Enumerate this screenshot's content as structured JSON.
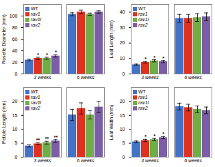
{
  "chart_data": [
    {
      "type": "bar",
      "ylabel": "Rosette Diameter (mm)",
      "categories": [
        "3 weeks",
        "6 weeks"
      ],
      "series": [
        {
          "name": "WT",
          "color": "#4472C4",
          "values": [
            24,
            103
          ],
          "errors": [
            1.5,
            2.5
          ]
        },
        {
          "name": "rav1",
          "color": "#E03020",
          "values": [
            27,
            107
          ],
          "errors": [
            1.8,
            3
          ],
          "annotations": [
            "*",
            null
          ]
        },
        {
          "name": "rav1l",
          "color": "#70AD47",
          "values": [
            27,
            103
          ],
          "errors": [
            1.8,
            2
          ],
          "annotations": [
            "*",
            null
          ]
        },
        {
          "name": "rav2",
          "color": "#7B5EA7",
          "values": [
            31,
            107
          ],
          "errors": [
            2,
            2
          ],
          "annotations": [
            "*",
            null
          ]
        }
      ],
      "ylim": [
        0,
        120
      ],
      "yticks": [
        0,
        20,
        40,
        60,
        80,
        100
      ],
      "legend": "upper left",
      "grid": false
    },
    {
      "type": "bar",
      "ylabel": "Leaf Length (mm)",
      "categories": [
        "3 weeks",
        "6 weeks"
      ],
      "series": [
        {
          "name": "WT",
          "color": "#4472C4",
          "values": [
            6,
            36
          ],
          "errors": [
            0.4,
            2.5
          ]
        },
        {
          "name": "rav1",
          "color": "#E03020",
          "values": [
            7.5,
            36
          ],
          "errors": [
            0.5,
            2.5
          ],
          "annotations": [
            "*",
            null
          ]
        },
        {
          "name": "rav1l",
          "color": "#70AD47",
          "values": [
            8.5,
            36.5
          ],
          "errors": [
            0.7,
            2.5
          ],
          "annotations": [
            "*",
            null
          ]
        },
        {
          "name": "rav2",
          "color": "#7B5EA7",
          "values": [
            8,
            37
          ],
          "errors": [
            0.7,
            2.5
          ],
          "annotations": [
            "*",
            null
          ]
        }
      ],
      "ylim": [
        0,
        45
      ],
      "yticks": [
        0,
        10,
        20,
        30,
        40
      ],
      "legend": "upper left",
      "grid": false
    },
    {
      "type": "bar",
      "ylabel": "Petiole Length (mm)",
      "categories": [
        "3 weeks",
        "6 weeks"
      ],
      "series": [
        {
          "name": "WT",
          "color": "#4472C4",
          "values": [
            4,
            15.2
          ],
          "errors": [
            0.4,
            2
          ]
        },
        {
          "name": "rav1",
          "color": "#E03020",
          "values": [
            4.8,
            17.5
          ],
          "errors": [
            0.4,
            2
          ],
          "annotations": [
            "**",
            null
          ]
        },
        {
          "name": "rav1l",
          "color": "#70AD47",
          "values": [
            5.2,
            15.2
          ],
          "errors": [
            0.5,
            1.5
          ],
          "annotations": [
            "**",
            null
          ]
        },
        {
          "name": "rav2",
          "color": "#7B5EA7",
          "values": [
            5.8,
            18
          ],
          "errors": [
            0.5,
            2
          ],
          "annotations": [
            "**",
            null
          ]
        }
      ],
      "ylim": [
        0,
        25
      ],
      "yticks": [
        0,
        5,
        10,
        15,
        20
      ],
      "legend": "upper left",
      "grid": false
    },
    {
      "type": "bar",
      "ylabel": "Leaf Width (mm)",
      "categories": [
        "3 weeks",
        "6 weeks"
      ],
      "series": [
        {
          "name": "WT",
          "color": "#4472C4",
          "values": [
            5.5,
            18.2
          ],
          "errors": [
            0.3,
            1.2
          ]
        },
        {
          "name": "rav1",
          "color": "#E03020",
          "values": [
            6,
            17.8
          ],
          "errors": [
            0.4,
            1.2
          ],
          "annotations": [
            "*",
            null
          ]
        },
        {
          "name": "rav1l",
          "color": "#70AD47",
          "values": [
            6.3,
            17.2
          ],
          "errors": [
            0.4,
            1.2
          ],
          "annotations": [
            "*",
            null
          ]
        },
        {
          "name": "rav2",
          "color": "#7B5EA7",
          "values": [
            7,
            16.8
          ],
          "errors": [
            0.4,
            1.2
          ],
          "annotations": [
            "*",
            null
          ]
        }
      ],
      "ylim": [
        0,
        25
      ],
      "yticks": [
        0,
        5,
        10,
        15,
        20
      ],
      "legend": "upper left",
      "grid": false
    }
  ]
}
